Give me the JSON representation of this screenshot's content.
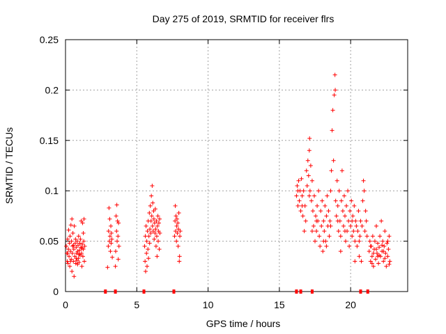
{
  "chart_data": {
    "type": "scatter",
    "title": "Day 275 of 2019, SRMTID for receiver flrs",
    "xlabel": "GPS time / hours",
    "ylabel": "SRMTID / TECUs",
    "xlim": [
      0,
      24
    ],
    "ylim": [
      0,
      0.25
    ],
    "x_ticks": [
      0,
      5,
      10,
      15,
      20
    ],
    "y_ticks": [
      0,
      0.05,
      0.1,
      0.15,
      0.2,
      0.25
    ],
    "x_tick_labels": [
      "0",
      "5",
      "10",
      "15",
      "20"
    ],
    "y_tick_labels": [
      "0",
      "0.05",
      "0.1",
      "0.15",
      "0.2",
      "0.25"
    ],
    "grid": true,
    "marker": "+",
    "color": "#ff0000",
    "series": [
      {
        "points": [
          [
            0.05,
            0.045
          ],
          [
            0.1,
            0.038
          ],
          [
            0.12,
            0.03
          ],
          [
            0.15,
            0.052
          ],
          [
            0.18,
            0.028
          ],
          [
            0.2,
            0.042
          ],
          [
            0.22,
            0.061
          ],
          [
            0.25,
            0.035
          ],
          [
            0.28,
            0.048
          ],
          [
            0.3,
            0.025
          ],
          [
            0.32,
            0.055
          ],
          [
            0.35,
            0.04
          ],
          [
            0.38,
            0.066
          ],
          [
            0.4,
            0.032
          ],
          [
            0.42,
            0.05
          ],
          [
            0.45,
            0.072
          ],
          [
            0.48,
            0.038
          ],
          [
            0.5,
            0.045
          ],
          [
            0.52,
            0.058
          ],
          [
            0.55,
            0.03
          ],
          [
            0.58,
            0.042
          ],
          [
            0.6,
            0.015
          ],
          [
            0.62,
            0.065
          ],
          [
            0.65,
            0.035
          ],
          [
            0.68,
            0.048
          ],
          [
            0.7,
            0.052
          ],
          [
            0.72,
            0.028
          ],
          [
            0.75,
            0.044
          ],
          [
            0.78,
            0.038
          ],
          [
            0.8,
            0.031
          ],
          [
            0.82,
            0.05
          ],
          [
            0.85,
            0.04
          ],
          [
            0.88,
            0.046
          ],
          [
            0.9,
            0.033
          ],
          [
            0.92,
            0.055
          ],
          [
            0.95,
            0.029
          ],
          [
            0.98,
            0.041
          ],
          [
            1.0,
            0.048
          ],
          [
            1.02,
            0.036
          ],
          [
            1.05,
            0.052
          ],
          [
            1.08,
            0.044
          ],
          [
            1.1,
            0.07
          ],
          [
            1.12,
            0.038
          ],
          [
            1.15,
            0.025
          ],
          [
            1.18,
            0.047
          ],
          [
            1.2,
            0.068
          ],
          [
            1.22,
            0.035
          ],
          [
            1.25,
            0.042
          ],
          [
            1.28,
            0.05
          ],
          [
            1.3,
            0.072
          ],
          [
            1.32,
            0.03
          ],
          [
            1.35,
            0.045
          ],
          [
            0.15,
            0.038
          ],
          [
            0.35,
            0.03
          ],
          [
            0.55,
            0.046
          ],
          [
            0.75,
            0.033
          ],
          [
            0.95,
            0.037
          ],
          [
            1.15,
            0.043
          ],
          [
            0.45,
            0.02
          ],
          [
            0.85,
            0.027
          ],
          [
            1.25,
            0.058
          ],
          [
            2.95,
            0.024
          ],
          [
            3.0,
            0.045
          ],
          [
            3.02,
            0.06
          ],
          [
            3.05,
            0.083
          ],
          [
            3.08,
            0.05
          ],
          [
            3.1,
            0.072
          ],
          [
            3.12,
            0.055
          ],
          [
            3.15,
            0.04
          ],
          [
            3.18,
            0.065
          ],
          [
            3.2,
            0.048
          ],
          [
            3.22,
            0.058
          ],
          [
            3.25,
            0.052
          ],
          [
            3.28,
            0.034
          ],
          [
            3.5,
            0.025
          ],
          [
            3.52,
            0.04
          ],
          [
            3.55,
            0.075
          ],
          [
            3.58,
            0.06
          ],
          [
            3.6,
            0.086
          ],
          [
            3.62,
            0.05
          ],
          [
            3.65,
            0.07
          ],
          [
            3.68,
            0.055
          ],
          [
            3.7,
            0.032
          ],
          [
            3.72,
            0.068
          ],
          [
            3.75,
            0.045
          ],
          [
            5.55,
            0.045
          ],
          [
            5.58,
            0.03
          ],
          [
            5.6,
            0.055
          ],
          [
            5.62,
            0.02
          ],
          [
            5.65,
            0.065
          ],
          [
            5.68,
            0.038
          ],
          [
            5.7,
            0.05
          ],
          [
            5.72,
            0.025
          ],
          [
            5.75,
            0.06
          ],
          [
            5.78,
            0.042
          ],
          [
            5.8,
            0.07
          ],
          [
            5.82,
            0.033
          ],
          [
            5.85,
            0.055
          ],
          [
            5.88,
            0.078
          ],
          [
            5.9,
            0.048
          ],
          [
            5.92,
            0.062
          ],
          [
            5.95,
            0.085
          ],
          [
            5.98,
            0.058
          ],
          [
            6.0,
            0.07
          ],
          [
            6.02,
            0.095
          ],
          [
            6.05,
            0.075
          ],
          [
            6.08,
            0.105
          ],
          [
            6.1,
            0.065
          ],
          [
            6.12,
            0.088
          ],
          [
            6.15,
            0.06
          ],
          [
            6.18,
            0.08
          ],
          [
            6.2,
            0.072
          ],
          [
            6.22,
            0.052
          ],
          [
            6.25,
            0.068
          ],
          [
            6.28,
            0.058
          ],
          [
            6.3,
            0.082
          ],
          [
            6.32,
            0.062
          ],
          [
            6.35,
            0.045
          ],
          [
            6.38,
            0.07
          ],
          [
            6.4,
            0.055
          ],
          [
            6.42,
            0.035
          ],
          [
            6.45,
            0.065
          ],
          [
            6.48,
            0.075
          ],
          [
            6.5,
            0.05
          ],
          [
            6.52,
            0.06
          ],
          [
            6.55,
            0.068
          ],
          [
            6.58,
            0.042
          ],
          [
            6.6,
            0.072
          ],
          [
            6.62,
            0.058
          ],
          [
            7.65,
            0.055
          ],
          [
            7.68,
            0.07
          ],
          [
            7.7,
            0.085
          ],
          [
            7.72,
            0.06
          ],
          [
            7.75,
            0.075
          ],
          [
            7.78,
            0.05
          ],
          [
            7.8,
            0.065
          ],
          [
            7.82,
            0.072
          ],
          [
            7.85,
            0.058
          ],
          [
            7.88,
            0.068
          ],
          [
            7.9,
            0.045
          ],
          [
            7.92,
            0.062
          ],
          [
            7.95,
            0.078
          ],
          [
            7.98,
            0.03
          ],
          [
            8.0,
            0.035
          ],
          [
            8.02,
            0.055
          ],
          [
            8.05,
            0.06
          ],
          [
            16.2,
            0.095
          ],
          [
            16.25,
            0.105
          ],
          [
            16.3,
            0.085
          ],
          [
            16.35,
            0.11
          ],
          [
            16.4,
            0.09
          ],
          [
            16.45,
            0.1
          ],
          [
            16.5,
            0.08
          ],
          [
            16.55,
            0.112
          ],
          [
            16.6,
            0.095
          ],
          [
            16.65,
            0.075
          ],
          [
            16.7,
            0.1
          ],
          [
            16.75,
            0.06
          ],
          [
            16.8,
            0.085
          ],
          [
            16.85,
            0.07
          ],
          [
            16.9,
            0.12
          ],
          [
            16.95,
            0.105
          ],
          [
            17.0,
            0.13
          ],
          [
            17.05,
            0.115
          ],
          [
            17.1,
            0.14
          ],
          [
            17.12,
            0.152
          ],
          [
            17.15,
            0.1
          ],
          [
            17.2,
            0.125
          ],
          [
            17.25,
            0.09
          ],
          [
            17.3,
            0.11
          ],
          [
            17.35,
            0.08
          ],
          [
            17.4,
            0.065
          ],
          [
            17.45,
            0.095
          ],
          [
            17.5,
            0.05
          ],
          [
            17.55,
            0.075
          ],
          [
            17.6,
            0.06
          ],
          [
            17.65,
            0.085
          ],
          [
            17.7,
            0.07
          ],
          [
            17.75,
            0.1
          ],
          [
            17.8,
            0.055
          ],
          [
            17.85,
            0.045
          ],
          [
            17.9,
            0.08
          ],
          [
            17.95,
            0.065
          ],
          [
            18.0,
            0.09
          ],
          [
            18.05,
            0.04
          ],
          [
            18.1,
            0.07
          ],
          [
            18.15,
            0.06
          ],
          [
            18.2,
            0.085
          ],
          [
            18.25,
            0.05
          ],
          [
            18.3,
            0.075
          ],
          [
            18.35,
            0.095
          ],
          [
            18.4,
            0.065
          ],
          [
            18.45,
            0.08
          ],
          [
            18.5,
            0.055
          ],
          [
            18.55,
            0.07
          ],
          [
            18.6,
            0.1
          ],
          [
            18.65,
            0.12
          ],
          [
            18.7,
            0.16
          ],
          [
            18.75,
            0.18
          ],
          [
            18.8,
            0.13
          ],
          [
            18.85,
            0.195
          ],
          [
            18.9,
            0.215
          ],
          [
            18.92,
            0.2
          ],
          [
            18.95,
            0.09
          ],
          [
            19.0,
            0.075
          ],
          [
            19.05,
            0.11
          ],
          [
            19.1,
            0.085
          ],
          [
            19.15,
            0.06
          ],
          [
            19.2,
            0.1
          ],
          [
            19.25,
            0.07
          ],
          [
            19.3,
            0.055
          ],
          [
            19.35,
            0.09
          ],
          [
            19.4,
            0.12
          ],
          [
            19.45,
            0.08
          ],
          [
            19.5,
            0.065
          ],
          [
            19.55,
            0.095
          ],
          [
            19.6,
            0.075
          ],
          [
            19.65,
            0.05
          ],
          [
            19.7,
            0.085
          ],
          [
            19.75,
            0.06
          ],
          [
            19.8,
            0.1
          ],
          [
            19.85,
            0.07
          ],
          [
            19.9,
            0.045
          ],
          [
            19.95,
            0.08
          ],
          [
            20.0,
            0.065
          ],
          [
            20.05,
            0.09
          ],
          [
            20.1,
            0.055
          ],
          [
            20.15,
            0.075
          ],
          [
            20.2,
            0.06
          ],
          [
            20.25,
            0.085
          ],
          [
            20.3,
            0.05
          ],
          [
            20.35,
            0.07
          ],
          [
            20.4,
            0.065
          ],
          [
            20.45,
            0.045
          ],
          [
            20.5,
            0.06
          ],
          [
            20.55,
            0.08
          ],
          [
            20.6,
            0.035
          ],
          [
            20.65,
            0.055
          ],
          [
            20.7,
            0.07
          ],
          [
            20.75,
            0.03
          ],
          [
            20.8,
            0.065
          ],
          [
            20.85,
            0.09
          ],
          [
            20.9,
            0.11
          ],
          [
            20.95,
            0.1
          ],
          [
            21.0,
            0.06
          ],
          [
            21.05,
            0.08
          ],
          [
            21.1,
            0.07
          ],
          [
            21.15,
            0.055
          ],
          [
            16.3,
            0.1
          ],
          [
            16.6,
            0.085
          ],
          [
            17.1,
            0.095
          ],
          [
            17.6,
            0.07
          ],
          [
            18.1,
            0.05
          ],
          [
            18.6,
            0.065
          ],
          [
            19.1,
            0.07
          ],
          [
            19.6,
            0.06
          ],
          [
            20.1,
            0.07
          ],
          [
            20.6,
            0.05
          ],
          [
            17.3,
            0.06
          ],
          [
            18.3,
            0.045
          ],
          [
            19.3,
            0.04
          ],
          [
            20.3,
            0.03
          ],
          [
            21.3,
            0.04
          ],
          [
            21.35,
            0.05
          ],
          [
            21.4,
            0.03
          ],
          [
            21.45,
            0.045
          ],
          [
            21.5,
            0.035
          ],
          [
            21.55,
            0.055
          ],
          [
            21.6,
            0.025
          ],
          [
            21.65,
            0.042
          ],
          [
            21.7,
            0.05
          ],
          [
            21.75,
            0.032
          ],
          [
            21.8,
            0.065
          ],
          [
            21.85,
            0.038
          ],
          [
            21.9,
            0.048
          ],
          [
            21.95,
            0.028
          ],
          [
            22.0,
            0.044
          ],
          [
            22.05,
            0.055
          ],
          [
            22.1,
            0.035
          ],
          [
            22.15,
            0.07
          ],
          [
            22.2,
            0.04
          ],
          [
            22.25,
            0.05
          ],
          [
            22.3,
            0.03
          ],
          [
            22.35,
            0.045
          ],
          [
            22.4,
            0.06
          ],
          [
            22.45,
            0.038
          ],
          [
            22.5,
            0.025
          ],
          [
            22.55,
            0.048
          ],
          [
            22.6,
            0.035
          ],
          [
            22.65,
            0.042
          ],
          [
            22.7,
            0.055
          ],
          [
            22.75,
            0.03
          ],
          [
            21.4,
            0.045
          ],
          [
            21.6,
            0.038
          ],
          [
            21.8,
            0.042
          ],
          [
            22.0,
            0.036
          ],
          [
            22.2,
            0.046
          ],
          [
            22.4,
            0.033
          ],
          [
            22.6,
            0.05
          ],
          [
            21.5,
            0.028
          ],
          [
            21.9,
            0.035
          ],
          [
            22.3,
            0.04
          ],
          [
            22.7,
            0.027
          ]
        ]
      }
    ],
    "zero_markers_x": [
      2.8,
      3.5,
      5.5,
      7.6,
      16.2,
      16.5,
      17.3,
      20.7,
      21.2
    ]
  }
}
